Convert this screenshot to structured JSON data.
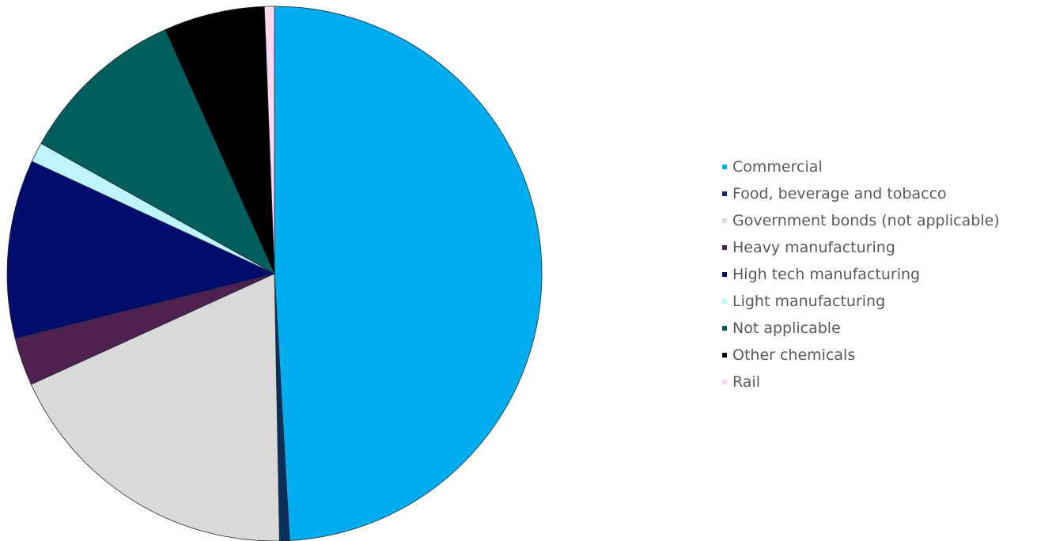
{
  "chart_data": {
    "type": "pie",
    "title": "",
    "start_angle_deg": 0,
    "direction": "clockwise",
    "legend_position": "right",
    "slice_border_color": "#1f2a3a",
    "slices": [
      {
        "label": "Commercial",
        "value": 49.1,
        "color": "#00ADEF"
      },
      {
        "label": "Food, beverage and tobacco",
        "value": 0.6,
        "color": "#0B2E5C"
      },
      {
        "label": "Government bonds (not applicable)",
        "value": 18.5,
        "color": "#D9D9D9"
      },
      {
        "label": "Heavy manufacturing",
        "value": 2.9,
        "color": "#4F2150"
      },
      {
        "label": "High tech manufacturing",
        "value": 10.8,
        "color": "#000C6E"
      },
      {
        "label": "Light manufacturing",
        "value": 1.2,
        "color": "#BDF4FF"
      },
      {
        "label": "Not applicable",
        "value": 10.2,
        "color": "#005F5C"
      },
      {
        "label": "Other chemicals",
        "value": 6.1,
        "color": "#000000"
      },
      {
        "label": "Rail",
        "value": 0.6,
        "color": "#FFD9EF"
      }
    ]
  }
}
